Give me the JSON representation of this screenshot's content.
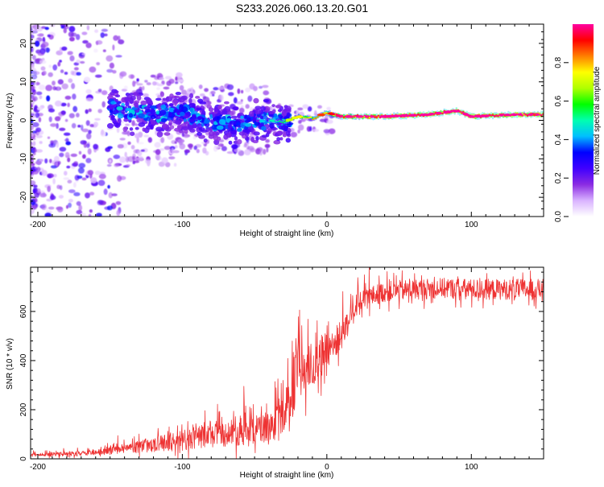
{
  "title": "S233.2026.060.13.20.G01",
  "chart_data": [
    {
      "type": "heatmap",
      "name": "spectrogram",
      "xlabel": "Height of straight line (km)",
      "ylabel": "Frequency (Hz)",
      "xlim": [
        -205,
        150
      ],
      "ylim": [
        -25,
        25
      ],
      "xticks": [
        -200,
        -100,
        0,
        100
      ],
      "yticks": [
        -20,
        -10,
        0,
        10,
        20
      ],
      "colorbar": {
        "label": "Normalized spectral amplitude",
        "range": [
          0,
          1
        ],
        "ticks": [
          "0.0",
          "0.2",
          "0.4",
          "0.6",
          "0.8"
        ],
        "colors": [
          "#ffffff",
          "#d9b3ff",
          "#8a2be2",
          "#4000ff",
          "#0000ff",
          "#00bfff",
          "#00ffb0",
          "#00ff00",
          "#b0ff00",
          "#ffff00",
          "#ff8000",
          "#ff0000",
          "#ff00a0"
        ]
      },
      "ridge": [
        {
          "x": -145,
          "f": 3.0,
          "amp": 0.25
        },
        {
          "x": -120,
          "f": 1.5,
          "amp": 0.3
        },
        {
          "x": -100,
          "f": 2.0,
          "amp": 0.3
        },
        {
          "x": -80,
          "f": -0.5,
          "amp": 0.3
        },
        {
          "x": -60,
          "f": -1.0,
          "amp": 0.35
        },
        {
          "x": -40,
          "f": 0.0,
          "amp": 0.4
        },
        {
          "x": -30,
          "f": -0.5,
          "amp": 0.6
        },
        {
          "x": -20,
          "f": 1.0,
          "amp": 0.7
        },
        {
          "x": -10,
          "f": 0.5,
          "amp": 0.8
        },
        {
          "x": 0,
          "f": 2.0,
          "amp": 0.85
        },
        {
          "x": 10,
          "f": 1.0,
          "amp": 0.95
        },
        {
          "x": 40,
          "f": 1.0,
          "amp": 1.0
        },
        {
          "x": 70,
          "f": 1.5,
          "amp": 1.0
        },
        {
          "x": 90,
          "f": 2.5,
          "amp": 1.0
        },
        {
          "x": 100,
          "f": 1.0,
          "amp": 1.0
        },
        {
          "x": 130,
          "f": 1.5,
          "amp": 1.0
        },
        {
          "x": 150,
          "f": 1.5,
          "amp": 1.0
        }
      ]
    },
    {
      "type": "line",
      "name": "snr",
      "xlabel": "Height of straight line (km)",
      "ylabel": "SNR (10 * v/v)",
      "xlim": [
        -205,
        150
      ],
      "ylim": [
        0,
        780
      ],
      "xticks": [
        -200,
        -100,
        0,
        100
      ],
      "yticks": [
        0,
        200,
        400,
        600
      ],
      "color": "#ee3333",
      "series": [
        {
          "name": "SNR",
          "x": [
            -205,
            -180,
            -160,
            -140,
            -120,
            -100,
            -80,
            -60,
            -40,
            -30,
            -25,
            -22,
            -20,
            -15,
            -10,
            -5,
            0,
            5,
            10,
            15,
            20,
            30,
            40,
            60,
            80,
            100,
            120,
            150
          ],
          "y": [
            15,
            20,
            25,
            40,
            60,
            75,
            95,
            110,
            130,
            170,
            250,
            330,
            350,
            360,
            380,
            410,
            440,
            470,
            500,
            560,
            620,
            660,
            680,
            690,
            695,
            690,
            690,
            690
          ],
          "noise": [
            10,
            12,
            15,
            25,
            45,
            60,
            70,
            80,
            90,
            110,
            150,
            180,
            170,
            150,
            130,
            120,
            110,
            100,
            90,
            80,
            70,
            60,
            60,
            60,
            60,
            60,
            60,
            60
          ]
        }
      ]
    }
  ]
}
